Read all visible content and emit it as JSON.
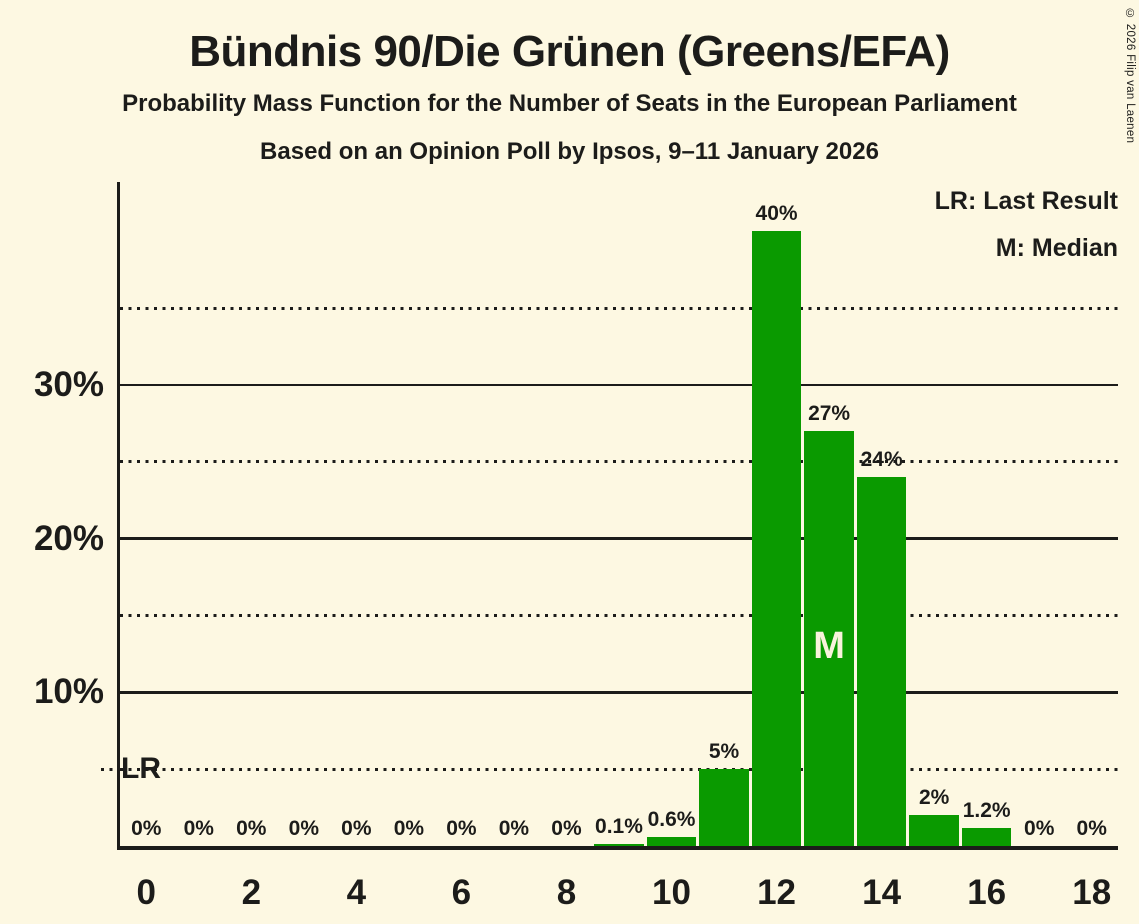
{
  "header": {
    "title": "Bündnis 90/Die Grünen (Greens/EFA)",
    "subtitle": "Probability Mass Function for the Number of Seats in the European Parliament",
    "poll_line": "Based on an Opinion Poll by Ipsos, 9–11 January 2026",
    "copyright": "© 2026 Filip van Laenen"
  },
  "legend": {
    "lr": "LR: Last Result",
    "m": "M: Median"
  },
  "markers": {
    "lr_label": "LR",
    "median_label": "M"
  },
  "colors": {
    "background": "#FDF8E2",
    "bar": "#0A9A00",
    "ink": "#1C1C1A",
    "median_text": "#FAF3DC"
  },
  "chart_data": {
    "type": "bar",
    "title": "Bündnis 90/Die Grünen (Greens/EFA)",
    "subtitle": "Probability Mass Function for the Number of Seats in the European Parliament",
    "source_line": "Based on an Opinion Poll by Ipsos, 9–11 January 2026",
    "xlabel": "",
    "ylabel": "",
    "categories": [
      0,
      1,
      2,
      3,
      4,
      5,
      6,
      7,
      8,
      9,
      10,
      11,
      12,
      13,
      14,
      15,
      16,
      17,
      18
    ],
    "values": [
      0,
      0,
      0,
      0,
      0,
      0,
      0,
      0,
      0,
      0.1,
      0.6,
      5,
      40,
      27,
      24,
      2,
      1.2,
      0,
      0
    ],
    "bar_labels": [
      "0%",
      "0%",
      "0%",
      "0%",
      "0%",
      "0%",
      "0%",
      "0%",
      "0%",
      "0.1%",
      "0.6%",
      "5%",
      "40%",
      "27%",
      "24%",
      "2%",
      "1.2%",
      "0%",
      "0%"
    ],
    "x_tick_labels": [
      "0",
      "2",
      "4",
      "6",
      "8",
      "10",
      "12",
      "14",
      "16",
      "18"
    ],
    "x_tick_seats": [
      0,
      2,
      4,
      6,
      8,
      10,
      12,
      14,
      16,
      18
    ],
    "y_ticks": [
      {
        "pct": 10,
        "label": "10%"
      },
      {
        "pct": 20,
        "label": "20%"
      },
      {
        "pct": 30,
        "label": "30%"
      }
    ],
    "dotted_gridlines_pct": [
      5,
      15,
      25,
      35
    ],
    "ylim": [
      0,
      43.2
    ],
    "median_seat": 13,
    "last_result_line_pct": 5,
    "legend_position": "top-right",
    "legend_entries": [
      "LR: Last Result",
      "M: Median"
    ],
    "grid": "horizontal"
  }
}
